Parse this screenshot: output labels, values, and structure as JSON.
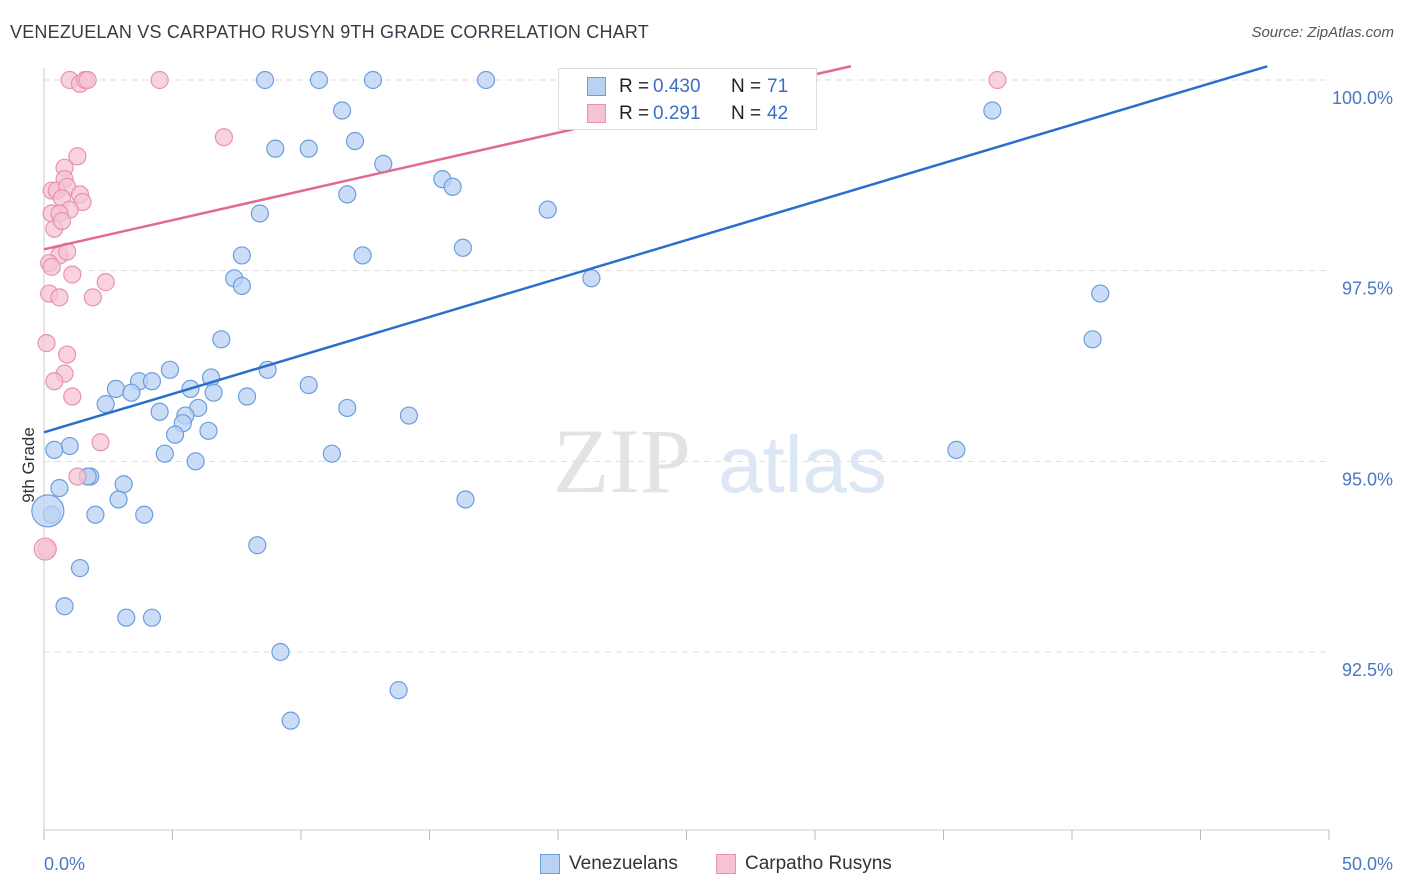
{
  "title": "VENEZUELAN VS CARPATHO RUSYN 9TH GRADE CORRELATION CHART",
  "source": "Source: ZipAtlas.com",
  "watermark": {
    "zip": "ZIP",
    "atlas": "atlas"
  },
  "colors": {
    "blue_fill": "#b9d1f3",
    "blue_stroke": "#6b9ede",
    "blue_line": "#2a6fce",
    "pink_fill": "#f6c3d3",
    "pink_stroke": "#e893ae",
    "pink_line": "#e26a92",
    "tick_text": "#4a78c2",
    "grid": "#dddddd"
  },
  "legend_top": {
    "rows": [
      {
        "r_label": "R =",
        "r_value": "0.430",
        "n_label": "N =",
        "n_value": "71",
        "series": "blue"
      },
      {
        "r_label": "R =",
        "r_value": "0.291",
        "n_label": "N =",
        "n_value": "42",
        "series": "pink"
      }
    ]
  },
  "legend_bottom": {
    "items": [
      {
        "label": "Venezuelans",
        "series": "blue"
      },
      {
        "label": "Carpatho Rusyns",
        "series": "pink"
      }
    ]
  },
  "chart_data": {
    "type": "scatter",
    "title": "VENEZUELAN VS CARPATHO RUSYN 9TH GRADE CORRELATION CHART",
    "xlabel": "",
    "ylabel": "9th Grade",
    "xlim": [
      0,
      50
    ],
    "ylim": [
      90.2,
      100.2
    ],
    "x_tick_labels": [
      "0.0%",
      "50.0%"
    ],
    "y_ticks": [
      {
        "value": 100.0,
        "label": "100.0%"
      },
      {
        "value": 97.5,
        "label": "97.5%"
      },
      {
        "value": 95.0,
        "label": "95.0%"
      },
      {
        "value": 92.5,
        "label": "92.5%"
      }
    ],
    "series": [
      {
        "name": "Venezuelans",
        "color": "blue",
        "R": 0.43,
        "N": 71,
        "trendline": {
          "x": [
            0,
            47.6
          ],
          "y": [
            95.38,
            100.18
          ]
        },
        "points": [
          {
            "x": 8.6,
            "y": 100.0
          },
          {
            "x": 10.7,
            "y": 100.0
          },
          {
            "x": 12.8,
            "y": 100.0
          },
          {
            "x": 17.2,
            "y": 100.0
          },
          {
            "x": 11.6,
            "y": 99.6
          },
          {
            "x": 12.1,
            "y": 99.2
          },
          {
            "x": 9.0,
            "y": 99.1
          },
          {
            "x": 10.3,
            "y": 99.1
          },
          {
            "x": 13.2,
            "y": 98.9
          },
          {
            "x": 15.5,
            "y": 98.7
          },
          {
            "x": 15.9,
            "y": 98.6
          },
          {
            "x": 11.8,
            "y": 98.5
          },
          {
            "x": 19.6,
            "y": 98.3
          },
          {
            "x": 8.4,
            "y": 98.25
          },
          {
            "x": 16.3,
            "y": 97.8
          },
          {
            "x": 7.7,
            "y": 97.7
          },
          {
            "x": 12.4,
            "y": 97.7
          },
          {
            "x": 7.4,
            "y": 97.4
          },
          {
            "x": 7.7,
            "y": 97.3
          },
          {
            "x": 21.3,
            "y": 97.4
          },
          {
            "x": 36.9,
            "y": 99.6
          },
          {
            "x": 41.1,
            "y": 97.2
          },
          {
            "x": 40.8,
            "y": 96.6
          },
          {
            "x": 6.9,
            "y": 96.6
          },
          {
            "x": 4.9,
            "y": 96.2
          },
          {
            "x": 8.7,
            "y": 96.2
          },
          {
            "x": 6.5,
            "y": 96.1
          },
          {
            "x": 3.7,
            "y": 96.05
          },
          {
            "x": 4.2,
            "y": 96.05
          },
          {
            "x": 10.3,
            "y": 96.0
          },
          {
            "x": 2.8,
            "y": 95.95
          },
          {
            "x": 5.7,
            "y": 95.95
          },
          {
            "x": 6.6,
            "y": 95.9
          },
          {
            "x": 3.4,
            "y": 95.9
          },
          {
            "x": 7.9,
            "y": 95.85
          },
          {
            "x": 2.4,
            "y": 95.75
          },
          {
            "x": 6.0,
            "y": 95.7
          },
          {
            "x": 4.5,
            "y": 95.65
          },
          {
            "x": 11.8,
            "y": 95.7
          },
          {
            "x": 5.5,
            "y": 95.6
          },
          {
            "x": 14.2,
            "y": 95.6
          },
          {
            "x": 5.4,
            "y": 95.5
          },
          {
            "x": 6.4,
            "y": 95.4
          },
          {
            "x": 5.1,
            "y": 95.35
          },
          {
            "x": 1.0,
            "y": 95.2
          },
          {
            "x": 0.4,
            "y": 95.15
          },
          {
            "x": 4.7,
            "y": 95.1
          },
          {
            "x": 11.2,
            "y": 95.1
          },
          {
            "x": 5.9,
            "y": 95.0
          },
          {
            "x": 35.5,
            "y": 95.15
          },
          {
            "x": 1.8,
            "y": 94.8
          },
          {
            "x": 1.7,
            "y": 94.8
          },
          {
            "x": 0.6,
            "y": 94.65
          },
          {
            "x": 3.1,
            "y": 94.7
          },
          {
            "x": 2.9,
            "y": 94.5
          },
          {
            "x": 16.4,
            "y": 94.5
          },
          {
            "x": 0.3,
            "y": 94.3
          },
          {
            "x": 2.0,
            "y": 94.3
          },
          {
            "x": 3.9,
            "y": 94.3
          },
          {
            "x": 8.3,
            "y": 93.9
          },
          {
            "x": 1.4,
            "y": 93.6
          },
          {
            "x": 0.8,
            "y": 93.1
          },
          {
            "x": 3.2,
            "y": 92.95
          },
          {
            "x": 4.2,
            "y": 92.95
          },
          {
            "x": 9.2,
            "y": 92.5
          },
          {
            "x": 13.8,
            "y": 92.0
          },
          {
            "x": 9.6,
            "y": 91.6
          }
        ]
      },
      {
        "name": "Carpatho Rusyns",
        "color": "pink",
        "R": 0.291,
        "N": 42,
        "trendline": {
          "x": [
            0,
            31.4
          ],
          "y": [
            97.78,
            100.18
          ]
        },
        "points": [
          {
            "x": 1.0,
            "y": 100.0
          },
          {
            "x": 1.4,
            "y": 99.95
          },
          {
            "x": 1.6,
            "y": 100.0
          },
          {
            "x": 1.7,
            "y": 100.0
          },
          {
            "x": 4.5,
            "y": 100.0
          },
          {
            "x": 37.1,
            "y": 100.0
          },
          {
            "x": 7.0,
            "y": 99.25
          },
          {
            "x": 1.3,
            "y": 99.0
          },
          {
            "x": 0.8,
            "y": 98.85
          },
          {
            "x": 0.8,
            "y": 98.7
          },
          {
            "x": 0.3,
            "y": 98.55
          },
          {
            "x": 0.5,
            "y": 98.55
          },
          {
            "x": 0.9,
            "y": 98.6
          },
          {
            "x": 1.4,
            "y": 98.5
          },
          {
            "x": 1.5,
            "y": 98.4
          },
          {
            "x": 0.7,
            "y": 98.45
          },
          {
            "x": 1.0,
            "y": 98.3
          },
          {
            "x": 0.3,
            "y": 98.25
          },
          {
            "x": 0.6,
            "y": 98.25
          },
          {
            "x": 0.4,
            "y": 98.05
          },
          {
            "x": 0.7,
            "y": 98.15
          },
          {
            "x": 0.6,
            "y": 97.7
          },
          {
            "x": 0.9,
            "y": 97.75
          },
          {
            "x": 0.2,
            "y": 97.6
          },
          {
            "x": 0.3,
            "y": 97.55
          },
          {
            "x": 1.1,
            "y": 97.45
          },
          {
            "x": 2.4,
            "y": 97.35
          },
          {
            "x": 0.2,
            "y": 97.2
          },
          {
            "x": 0.6,
            "y": 97.15
          },
          {
            "x": 1.9,
            "y": 97.15
          },
          {
            "x": 0.1,
            "y": 96.55
          },
          {
            "x": 0.9,
            "y": 96.4
          },
          {
            "x": 0.8,
            "y": 96.15
          },
          {
            "x": 0.4,
            "y": 96.05
          },
          {
            "x": 1.1,
            "y": 95.85
          },
          {
            "x": 2.2,
            "y": 95.25
          },
          {
            "x": 1.3,
            "y": 94.8
          },
          {
            "x": 0.1,
            "y": 93.85
          }
        ]
      }
    ],
    "grid": true
  }
}
